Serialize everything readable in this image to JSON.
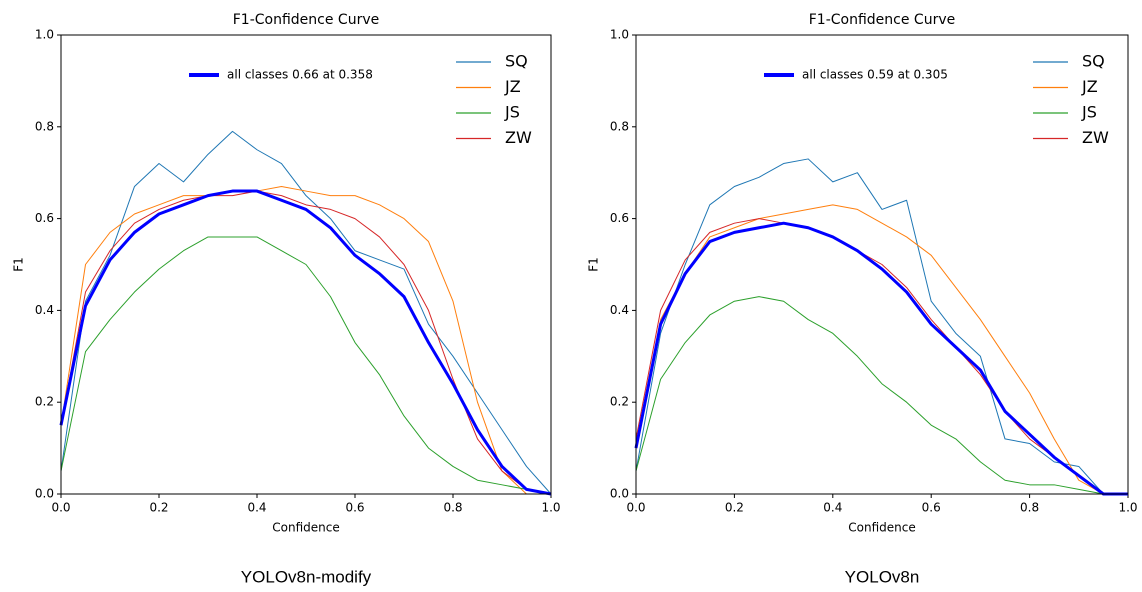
{
  "chart_data": [
    {
      "type": "line",
      "title": "F1-Confidence Curve",
      "xlabel": "Confidence",
      "ylabel": "F1",
      "caption": "YOLOv8n-modify",
      "x": [
        0,
        0.05,
        0.1,
        0.15,
        0.2,
        0.25,
        0.3,
        0.35,
        0.4,
        0.45,
        0.5,
        0.55,
        0.6,
        0.65,
        0.7,
        0.75,
        0.8,
        0.85,
        0.9,
        0.95,
        1.0
      ],
      "xlim": [
        0,
        1
      ],
      "ylim": [
        0,
        1
      ],
      "xticks": [
        {
          "value": 0,
          "label": "0.0"
        },
        0.2,
        0.4,
        0.6,
        0.8,
        {
          "value": 1,
          "label": "1.0"
        }
      ],
      "yticks": [
        {
          "value": 0,
          "label": "0.0"
        },
        0.2,
        0.4,
        0.6,
        0.8,
        {
          "value": 1,
          "label": "1.0"
        }
      ],
      "series": [
        {
          "name": "SQ",
          "color": "#1f77b4",
          "width": 1,
          "values": [
            0.05,
            0.42,
            0.52,
            0.67,
            0.72,
            0.68,
            0.74,
            0.79,
            0.75,
            0.72,
            0.65,
            0.6,
            0.53,
            0.51,
            0.49,
            0.37,
            0.3,
            0.22,
            0.14,
            0.06,
            0.0
          ]
        },
        {
          "name": "JZ",
          "color": "#ff7f0e",
          "width": 1,
          "values": [
            0.15,
            0.5,
            0.57,
            0.61,
            0.63,
            0.65,
            0.65,
            0.66,
            0.66,
            0.67,
            0.66,
            0.65,
            0.65,
            0.63,
            0.6,
            0.55,
            0.42,
            0.2,
            0.05,
            0.0,
            0.0
          ]
        },
        {
          "name": "JS",
          "color": "#2ca02c",
          "width": 1,
          "values": [
            0.05,
            0.31,
            0.38,
            0.44,
            0.49,
            0.53,
            0.56,
            0.56,
            0.56,
            0.53,
            0.5,
            0.43,
            0.33,
            0.26,
            0.17,
            0.1,
            0.06,
            0.03,
            0.02,
            0.01,
            0.0
          ]
        },
        {
          "name": "ZW",
          "color": "#d62728",
          "width": 1,
          "values": [
            0.15,
            0.44,
            0.53,
            0.59,
            0.62,
            0.64,
            0.65,
            0.65,
            0.66,
            0.65,
            0.63,
            0.62,
            0.6,
            0.56,
            0.5,
            0.4,
            0.25,
            0.12,
            0.05,
            0.01,
            0.0
          ]
        },
        {
          "name": "all classes 0.66 at 0.358",
          "color": "#0000ff",
          "width": 3,
          "values": [
            0.15,
            0.41,
            0.51,
            0.57,
            0.61,
            0.63,
            0.65,
            0.66,
            0.66,
            0.64,
            0.62,
            0.58,
            0.52,
            0.48,
            0.43,
            0.33,
            0.24,
            0.14,
            0.06,
            0.01,
            0.0
          ]
        }
      ]
    },
    {
      "type": "line",
      "title": "F1-Confidence Curve",
      "xlabel": "Confidence",
      "ylabel": "F1",
      "caption": "YOLOv8n",
      "x": [
        0,
        0.05,
        0.1,
        0.15,
        0.2,
        0.25,
        0.3,
        0.35,
        0.4,
        0.45,
        0.5,
        0.55,
        0.6,
        0.65,
        0.7,
        0.75,
        0.8,
        0.85,
        0.9,
        0.95,
        1.0
      ],
      "xlim": [
        0,
        1
      ],
      "ylim": [
        0,
        1
      ],
      "xticks": [
        {
          "value": 0,
          "label": "0.0"
        },
        0.2,
        0.4,
        0.6,
        0.8,
        {
          "value": 1,
          "label": "1.0"
        }
      ],
      "yticks": [
        {
          "value": 0,
          "label": "0.0"
        },
        0.2,
        0.4,
        0.6,
        0.8,
        {
          "value": 1,
          "label": "1.0"
        }
      ],
      "series": [
        {
          "name": "SQ",
          "color": "#1f77b4",
          "width": 1,
          "values": [
            0.05,
            0.35,
            0.5,
            0.63,
            0.67,
            0.69,
            0.72,
            0.73,
            0.68,
            0.7,
            0.62,
            0.64,
            0.42,
            0.35,
            0.3,
            0.12,
            0.11,
            0.07,
            0.06,
            0.0,
            0.0
          ]
        },
        {
          "name": "JZ",
          "color": "#ff7f0e",
          "width": 1,
          "values": [
            0.1,
            0.38,
            0.48,
            0.56,
            0.58,
            0.6,
            0.61,
            0.62,
            0.63,
            0.62,
            0.59,
            0.56,
            0.52,
            0.45,
            0.38,
            0.3,
            0.22,
            0.12,
            0.03,
            0.0,
            0.0
          ]
        },
        {
          "name": "JS",
          "color": "#2ca02c",
          "width": 1,
          "values": [
            0.05,
            0.25,
            0.33,
            0.39,
            0.42,
            0.43,
            0.42,
            0.38,
            0.35,
            0.3,
            0.24,
            0.2,
            0.15,
            0.12,
            0.07,
            0.03,
            0.02,
            0.02,
            0.01,
            0.0,
            0.0
          ]
        },
        {
          "name": "ZW",
          "color": "#d62728",
          "width": 1,
          "values": [
            0.12,
            0.4,
            0.51,
            0.57,
            0.59,
            0.6,
            0.59,
            0.58,
            0.56,
            0.53,
            0.5,
            0.45,
            0.38,
            0.32,
            0.26,
            0.18,
            0.12,
            0.08,
            0.04,
            0.0,
            0.0
          ]
        },
        {
          "name": "all classes 0.59 at 0.305",
          "color": "#0000ff",
          "width": 3,
          "values": [
            0.1,
            0.37,
            0.48,
            0.55,
            0.57,
            0.58,
            0.59,
            0.58,
            0.56,
            0.53,
            0.49,
            0.44,
            0.37,
            0.32,
            0.27,
            0.18,
            0.13,
            0.08,
            0.04,
            0.0,
            0.0
          ]
        }
      ]
    }
  ]
}
